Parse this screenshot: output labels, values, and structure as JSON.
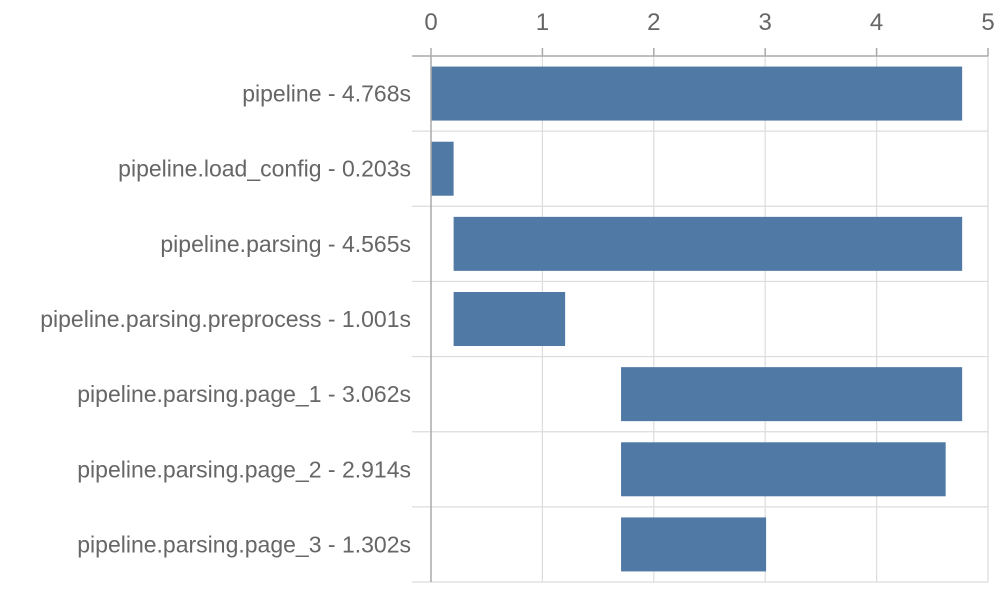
{
  "chart_data": {
    "type": "gantt-bar",
    "x_ticks": [
      "0",
      "1",
      "2",
      "3",
      "4",
      "5"
    ],
    "xlim": [
      0,
      5
    ],
    "x_axis_position": "top",
    "grid": true,
    "bar_color": "#5079a5",
    "bars": [
      {
        "label": "pipeline - 4.768s",
        "start": 0,
        "duration": 4.768
      },
      {
        "label": "pipeline.load_config - 0.203s",
        "start": 0,
        "duration": 0.203
      },
      {
        "label": "pipeline.parsing - 4.565s",
        "start": 0.203,
        "duration": 4.565
      },
      {
        "label": "pipeline.parsing.preprocess - 1.001s",
        "start": 0.203,
        "duration": 1.001
      },
      {
        "label": "pipeline.parsing.page_1 - 3.062s",
        "start": 1.706,
        "duration": 3.062
      },
      {
        "label": "pipeline.parsing.page_2 - 2.914s",
        "start": 1.706,
        "duration": 2.914
      },
      {
        "label": "pipeline.parsing.page_3 - 1.302s",
        "start": 1.706,
        "duration": 1.302
      }
    ]
  }
}
